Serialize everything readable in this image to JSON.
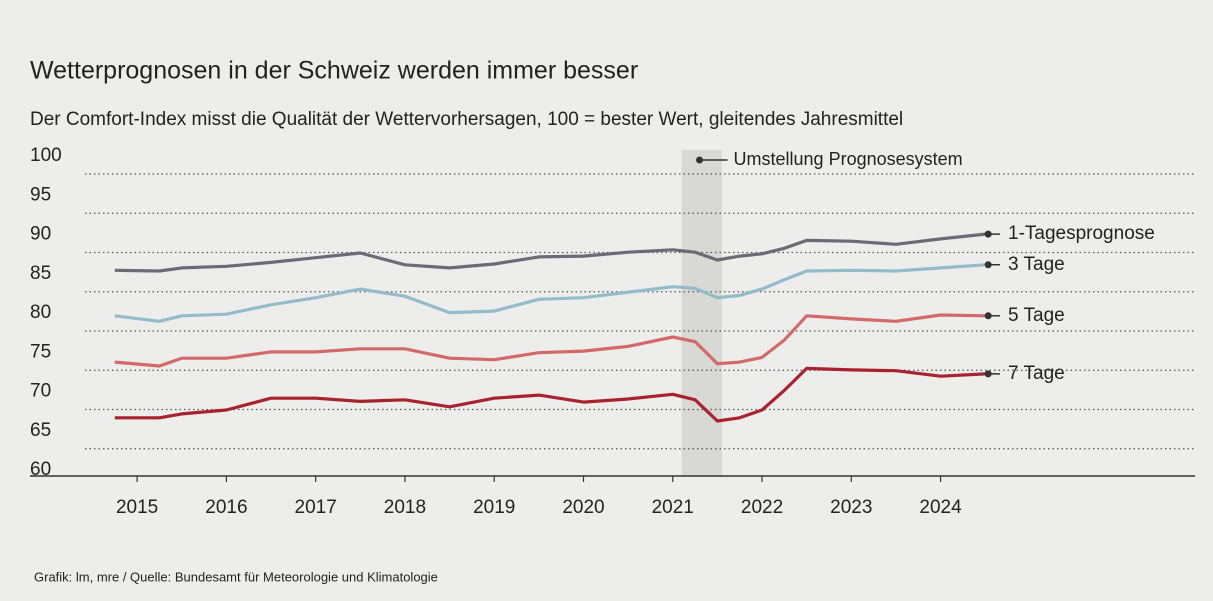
{
  "chart_data": {
    "type": "line",
    "title": "Wetterprognosen in der Schweiz werden immer besser",
    "subtitle": "Der Comfort-Index misst die Qualität der Wettervorhersagen, 100 = bester Wert, gleitendes Jahresmittel",
    "source": "Grafik: lm, mre / Quelle: Bundesamt für Meteorologie und Klimatologie",
    "annotation": {
      "text": "Umstellung Prognosesystem",
      "x": 2021.3
    },
    "highlight_x": [
      2021.1,
      2021.55
    ],
    "x": [
      2014.75,
      2015.25,
      2015.5,
      2016,
      2016.5,
      2017,
      2017.5,
      2018,
      2018.5,
      2019,
      2019.5,
      2020,
      2020.5,
      2021,
      2021.25,
      2021.5,
      2021.75,
      2022,
      2022.25,
      2022.5,
      2023,
      2023.5,
      2024,
      2024.5
    ],
    "series": [
      {
        "name": "1-Tagesprognose",
        "color": "#6b6b76",
        "values": [
          85.7,
          85.6,
          86,
          86.2,
          86.7,
          87.3,
          87.9,
          86.4,
          86,
          86.5,
          87.4,
          87.5,
          88,
          88.3,
          88,
          87,
          87.5,
          87.8,
          88.5,
          89.5,
          89.4,
          89,
          89.7,
          90.3
        ]
      },
      {
        "name": "3 Tage",
        "color": "#93bccb",
        "values": [
          79.9,
          79.2,
          79.9,
          80.1,
          81.3,
          82.2,
          83.3,
          82.4,
          80.3,
          80.5,
          82,
          82.2,
          82.9,
          83.6,
          83.4,
          82.2,
          82.5,
          83.3,
          84.5,
          85.6,
          85.7,
          85.6,
          86,
          86.4
        ]
      },
      {
        "name": "5 Tage",
        "color": "#d36a6a",
        "values": [
          74,
          73.5,
          74.5,
          74.5,
          75.3,
          75.3,
          75.7,
          75.7,
          74.5,
          74.3,
          75.2,
          75.4,
          76,
          77.2,
          76.6,
          73.8,
          74,
          74.6,
          76.8,
          79.9,
          79.5,
          79.2,
          80,
          79.9
        ]
      },
      {
        "name": "7 Tage",
        "color": "#a8232e",
        "values": [
          66.9,
          66.9,
          67.4,
          67.9,
          69.4,
          69.4,
          69,
          69.2,
          68.3,
          69.4,
          69.8,
          68.9,
          69.3,
          69.9,
          69.2,
          66.5,
          66.9,
          67.9,
          70.4,
          73.2,
          73,
          72.9,
          72.2,
          72.5
        ]
      }
    ],
    "xlim": [
      2013.8,
      2026.85
    ],
    "xticks": [
      2015,
      2016,
      2017,
      2018,
      2019,
      2020,
      2021,
      2022,
      2023,
      2024
    ],
    "ylim": [
      60,
      100
    ],
    "yticks": [
      60,
      65,
      70,
      75,
      80,
      85,
      90,
      95,
      100
    ],
    "grid": true
  }
}
